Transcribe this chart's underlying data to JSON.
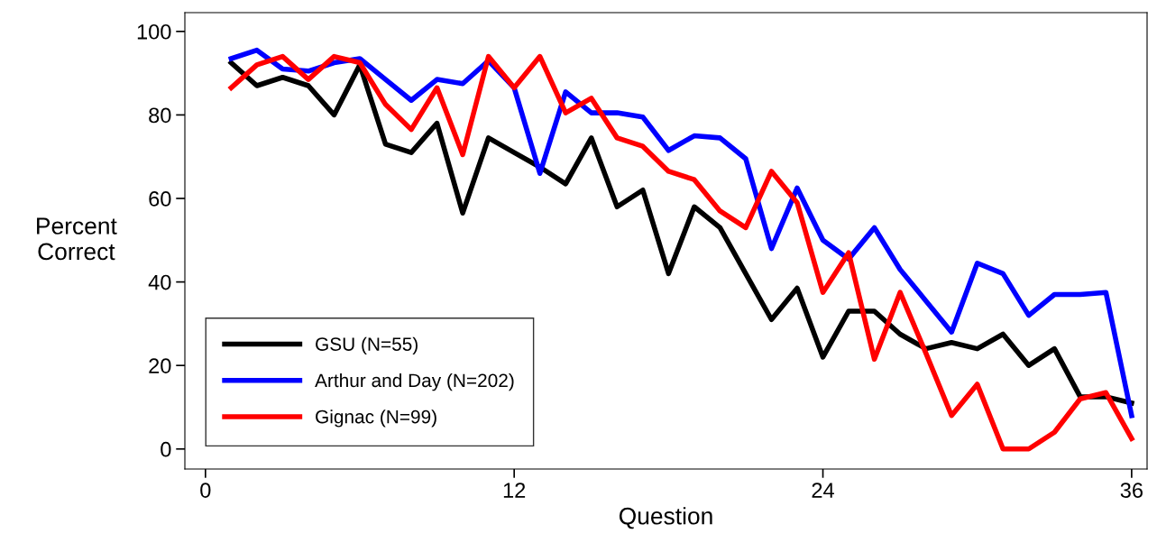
{
  "chart_data": {
    "type": "line",
    "xlabel": "Question",
    "ylabel": "Percent\nCorrect",
    "x": [
      1,
      2,
      3,
      4,
      5,
      6,
      7,
      8,
      9,
      10,
      11,
      12,
      13,
      14,
      15,
      16,
      17,
      18,
      19,
      20,
      21,
      22,
      23,
      24,
      25,
      26,
      27,
      28,
      29,
      30,
      31,
      32,
      33,
      34,
      35,
      36
    ],
    "series": [
      {
        "name": "GSU (N=55)",
        "color": "#000000",
        "values": [
          92.5,
          87,
          89,
          87,
          80,
          92,
          73,
          71,
          78,
          56.5,
          74.5,
          71,
          67.5,
          63.5,
          74.5,
          58,
          62,
          42,
          58,
          53,
          42,
          31,
          38.5,
          22,
          33,
          33,
          27.5,
          24,
          25.5,
          24,
          27.5,
          20,
          24,
          12.5,
          12.5,
          11
        ]
      },
      {
        "name": "Arthur and Day (N=202)",
        "color": "#0000ff",
        "values": [
          93.5,
          95.5,
          91,
          90.5,
          92.5,
          93.5,
          88.5,
          83.5,
          88.5,
          87.5,
          93,
          86.5,
          66,
          85.5,
          80.5,
          80.5,
          79.5,
          71.5,
          75,
          74.5,
          69.5,
          48,
          62.5,
          50,
          45.5,
          53,
          43,
          35.5,
          28,
          44.5,
          42,
          32,
          37,
          37,
          37.5,
          8
        ]
      },
      {
        "name": "Gignac (N=99)",
        "color": "#ff0000",
        "values": [
          86.5,
          92,
          94,
          88.5,
          94,
          92.5,
          82.5,
          76.5,
          86.5,
          70.5,
          94,
          86.5,
          94,
          80.5,
          84,
          74.5,
          72.5,
          66.5,
          64.5,
          57,
          53,
          66.5,
          59,
          37.5,
          47,
          21.5,
          37.5,
          23,
          8,
          15.5,
          0,
          0,
          4,
          12,
          13.5,
          2.5
        ]
      }
    ],
    "xlim": [
      -0.8,
      36.6
    ],
    "ylim": [
      -4.8,
      104.5
    ],
    "xticks": [
      0,
      12,
      24,
      36
    ],
    "yticks": [
      0,
      20,
      40,
      60,
      80,
      100
    ],
    "grid": false,
    "legend": "bottom left",
    "marker": "none",
    "line_style": "solid"
  }
}
